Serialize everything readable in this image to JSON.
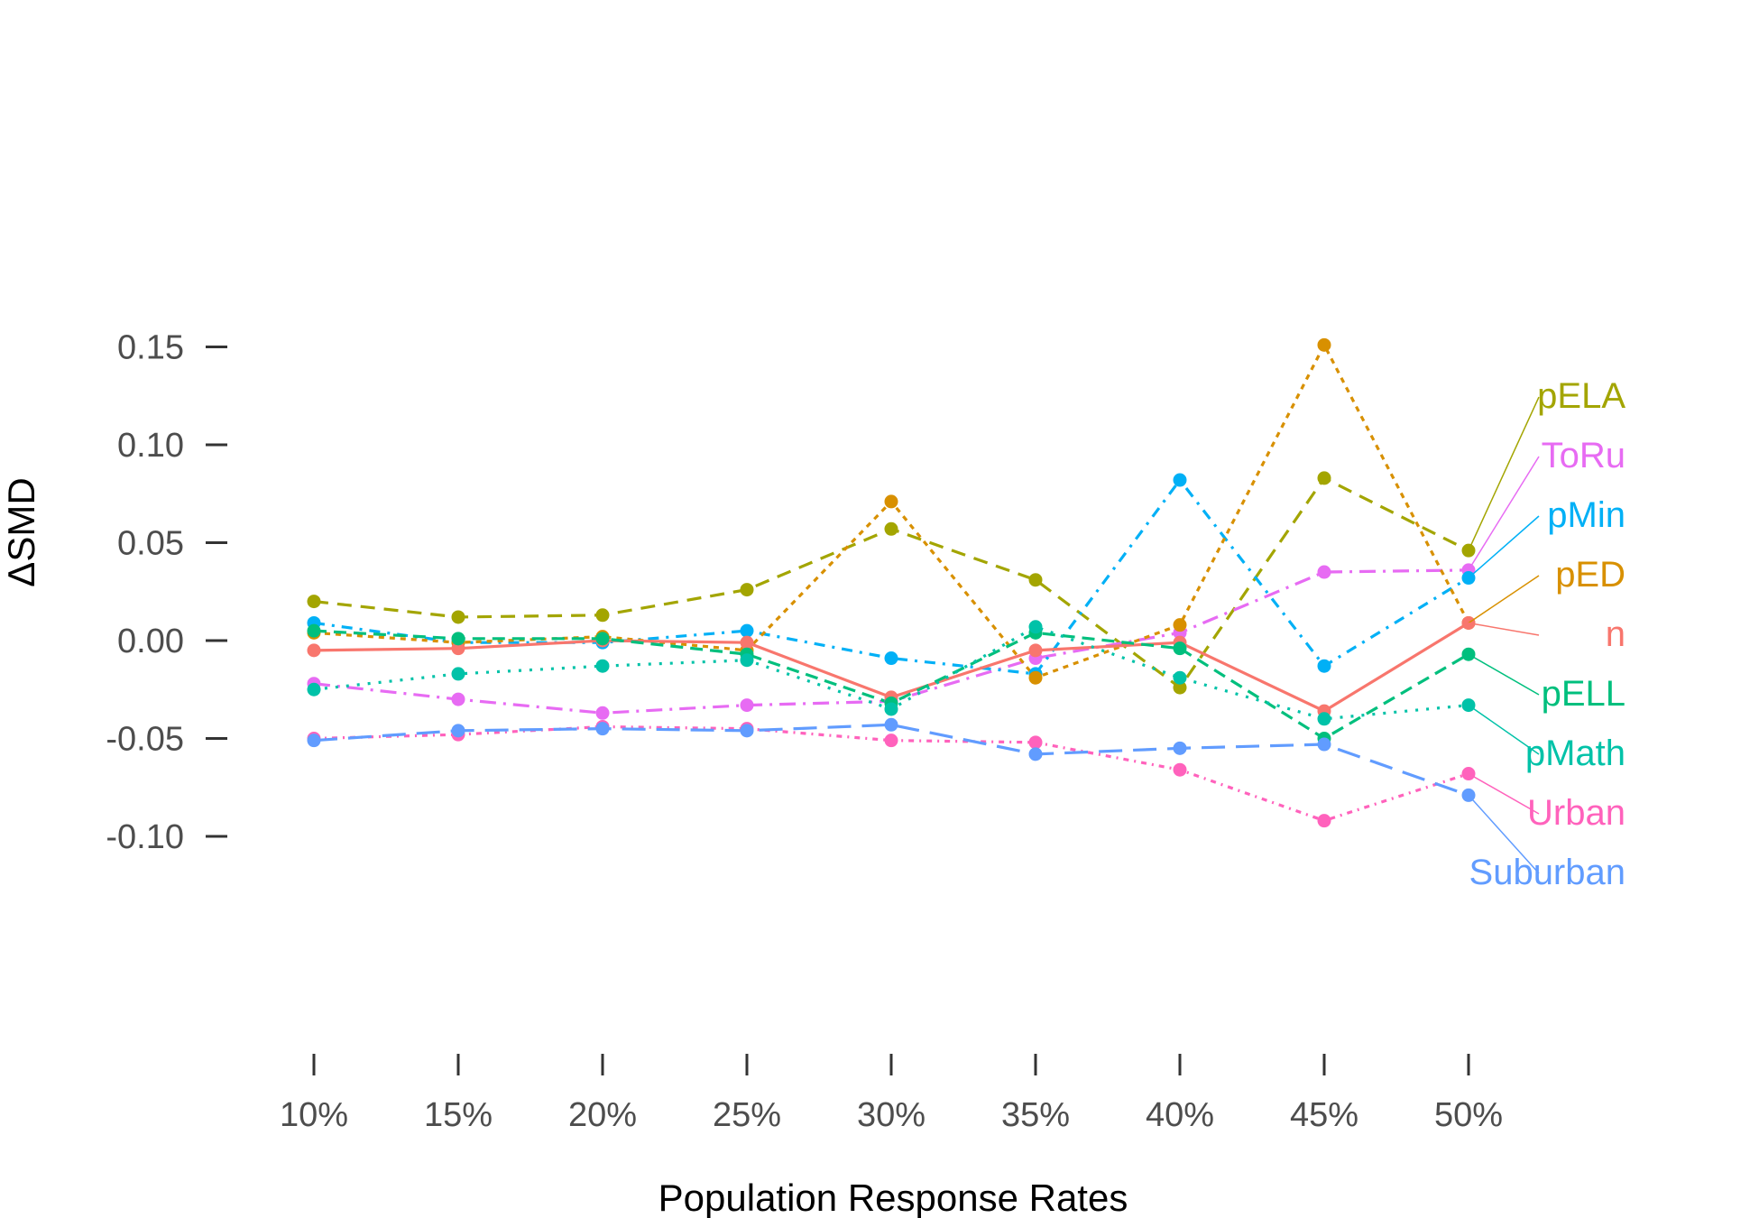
{
  "chart_data": {
    "type": "line",
    "title": "",
    "xlabel": "Population Response Rates",
    "ylabel": "ΔSMD",
    "x": [
      "10%",
      "15%",
      "20%",
      "25%",
      "30%",
      "35%",
      "40%",
      "45%",
      "50%"
    ],
    "ylim": [
      -0.105,
      0.155
    ],
    "yticks": [
      {
        "value": 0.15,
        "label": "0.15"
      },
      {
        "value": 0.1,
        "label": "0.10"
      },
      {
        "value": 0.05,
        "label": "0.05"
      },
      {
        "value": 0.0,
        "label": "0.00"
      },
      {
        "value": -0.05,
        "label": "-0.05"
      },
      {
        "value": -0.1,
        "label": "-0.10"
      }
    ],
    "grid": false,
    "legend": "direct labels at right end of each line",
    "series": [
      {
        "name": "pELA",
        "color": "#a3a500",
        "dash": "16,10",
        "values": [
          0.02,
          0.012,
          0.013,
          0.026,
          0.057,
          0.031,
          -0.024,
          0.083,
          0.046
        ]
      },
      {
        "name": "ToRu",
        "color": "#e76bf3",
        "dash": "18,8,3,8",
        "values": [
          -0.022,
          -0.03,
          -0.037,
          -0.033,
          -0.031,
          -0.009,
          0.004,
          0.035,
          0.036
        ]
      },
      {
        "name": "pMin",
        "color": "#00b0f6",
        "dash": "12,8,3,8",
        "values": [
          0.009,
          -0.001,
          -0.001,
          0.005,
          -0.009,
          -0.017,
          0.082,
          -0.013,
          0.032
        ]
      },
      {
        "name": "pED",
        "color": "#d89000",
        "dash": "6,6",
        "values": [
          0.004,
          -0.001,
          0.002,
          -0.005,
          0.071,
          -0.019,
          0.008,
          0.151,
          0.009
        ]
      },
      {
        "name": "n",
        "color": "#f8766d",
        "dash": "",
        "values": [
          -0.005,
          -0.004,
          0.0,
          -0.001,
          -0.029,
          -0.005,
          -0.001,
          -0.036,
          0.009
        ]
      },
      {
        "name": "pELL",
        "color": "#00bf7d",
        "dash": "14,8",
        "values": [
          0.005,
          0.001,
          0.001,
          -0.007,
          -0.032,
          0.004,
          -0.004,
          -0.05,
          -0.007
        ]
      },
      {
        "name": "pMath",
        "color": "#00c2a8",
        "dash": "3,9",
        "values": [
          -0.025,
          -0.017,
          -0.013,
          -0.01,
          -0.035,
          0.007,
          -0.019,
          -0.04,
          -0.033
        ]
      },
      {
        "name": "Urban",
        "color": "#ff62bc",
        "dash": "6,6,2,6",
        "values": [
          -0.05,
          -0.048,
          -0.044,
          -0.045,
          -0.051,
          -0.052,
          -0.066,
          -0.092,
          -0.068
        ]
      },
      {
        "name": "Suburban",
        "color": "#619cff",
        "dash": "26,12",
        "values": [
          -0.051,
          -0.046,
          -0.045,
          -0.046,
          -0.043,
          -0.058,
          -0.055,
          -0.053,
          -0.079
        ]
      }
    ]
  }
}
